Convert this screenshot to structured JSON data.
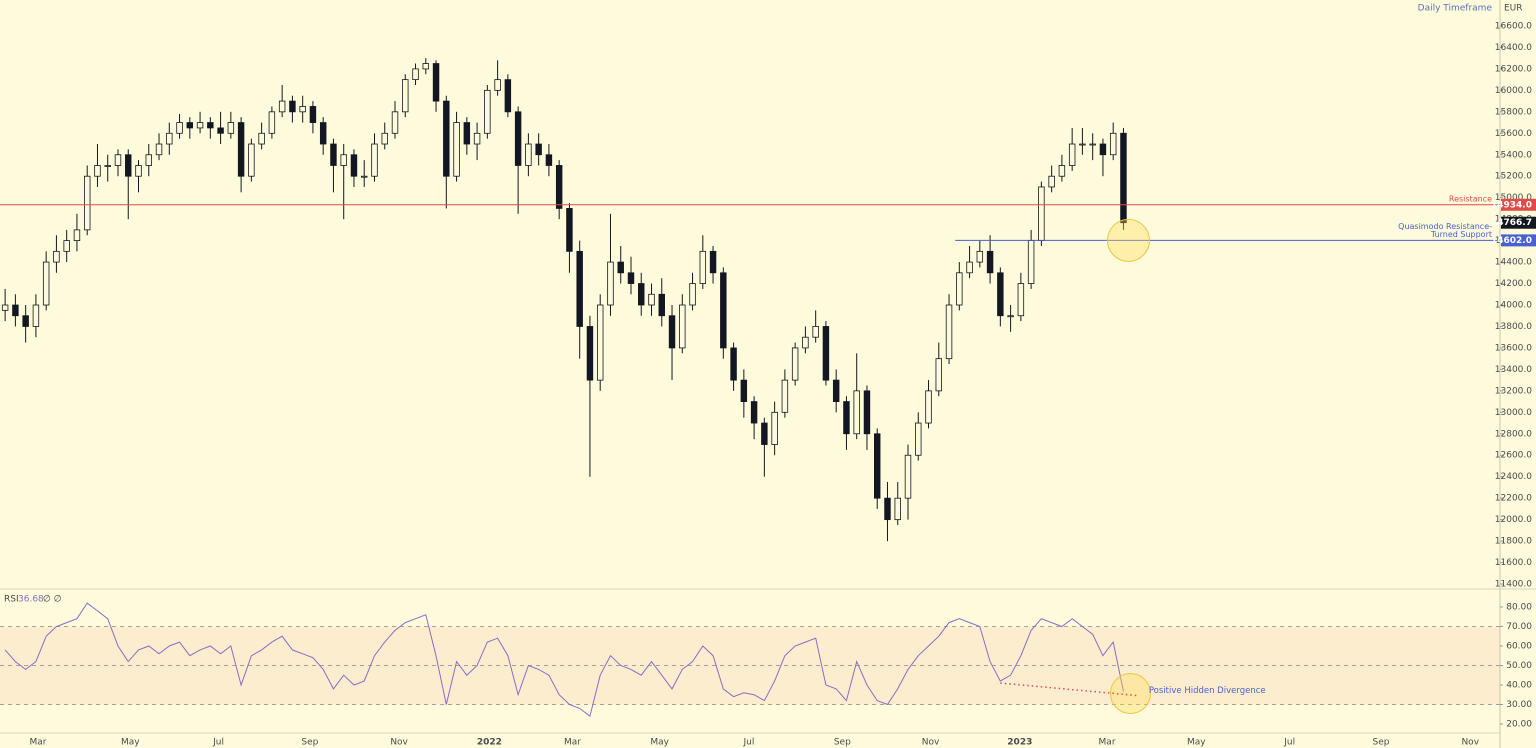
{
  "chart_data": {
    "type": "candlestick",
    "title": "Daily Timeframe",
    "currency": "EUR",
    "color": "#131722",
    "xlim": [
      -0.5,
      145.7
    ],
    "xticks": [
      {
        "value": 3.2,
        "label": "Mar"
      },
      {
        "value": 12.2,
        "label": "May"
      },
      {
        "value": 20.8,
        "label": "Jul"
      },
      {
        "value": 29.7,
        "label": "Sep"
      },
      {
        "value": 38.4,
        "label": "Nov"
      },
      {
        "value": 47.2,
        "label": "2022"
      },
      {
        "value": 55.3,
        "label": "Mar"
      },
      {
        "value": 63.8,
        "label": "May"
      },
      {
        "value": 72.5,
        "label": "Jul"
      },
      {
        "value": 81.6,
        "label": "Sep"
      },
      {
        "value": 90.2,
        "label": "Nov"
      },
      {
        "value": 98.9,
        "label": "2023"
      },
      {
        "value": 107.4,
        "label": "Mar"
      },
      {
        "value": 116.1,
        "label": "May"
      },
      {
        "value": 125.2,
        "label": "Jul"
      },
      {
        "value": 134.1,
        "label": "Sep"
      },
      {
        "value": 142.8,
        "label": "Nov"
      }
    ],
    "ylim": [
      11363,
      16842
    ],
    "yticks": [
      {
        "value": 11400,
        "label": "11400.0"
      },
      {
        "value": 11600,
        "label": "11600.0"
      },
      {
        "value": 11800,
        "label": "11800.0"
      },
      {
        "value": 12000,
        "label": "12000.0"
      },
      {
        "value": 12200,
        "label": "12200.0"
      },
      {
        "value": 12400,
        "label": "12400.0"
      },
      {
        "value": 12600,
        "label": "12600.0"
      },
      {
        "value": 12800,
        "label": "12800.0"
      },
      {
        "value": 13000,
        "label": "13000.0"
      },
      {
        "value": 13200,
        "label": "13200.0"
      },
      {
        "value": 13400,
        "label": "13400.0"
      },
      {
        "value": 13600,
        "label": "13600.0"
      },
      {
        "value": 13800,
        "label": "13800.0"
      },
      {
        "value": 14000,
        "label": "14000.0"
      },
      {
        "value": 14200,
        "label": "14200.0"
      },
      {
        "value": 14400,
        "label": "14400.0"
      },
      {
        "value": 14600,
        "label": "14600.0"
      },
      {
        "value": 14800,
        "label": "14800.0"
      },
      {
        "value": 15000,
        "label": "15000.0"
      },
      {
        "value": 15200,
        "label": "15200.0"
      },
      {
        "value": 15400,
        "label": "15400.0"
      },
      {
        "value": 15600,
        "label": "15600.0"
      },
      {
        "value": 15800,
        "label": "15800.0"
      },
      {
        "value": 16000,
        "label": "16000.0"
      },
      {
        "value": 16200,
        "label": "16200.0"
      },
      {
        "value": 16400,
        "label": "16400.0"
      },
      {
        "value": 16600,
        "label": "16600.0"
      }
    ],
    "ohlc": [
      [
        13950,
        14150,
        13850,
        14000
      ],
      [
        14000,
        14100,
        13800,
        13900
      ],
      [
        13900,
        14000,
        13650,
        13800
      ],
      [
        13800,
        14100,
        13700,
        14000
      ],
      [
        14000,
        14500,
        13950,
        14400
      ],
      [
        14400,
        14650,
        14300,
        14500
      ],
      [
        14500,
        14700,
        14400,
        14600
      ],
      [
        14600,
        14850,
        14500,
        14700
      ],
      [
        14700,
        15300,
        14650,
        15200
      ],
      [
        15200,
        15500,
        15100,
        15300
      ],
      [
        15300,
        15400,
        15150,
        15300
      ],
      [
        15300,
        15450,
        15200,
        15400
      ],
      [
        15400,
        15450,
        14800,
        15200
      ],
      [
        15200,
        15350,
        15050,
        15300
      ],
      [
        15300,
        15500,
        15200,
        15400
      ],
      [
        15400,
        15600,
        15350,
        15500
      ],
      [
        15500,
        15700,
        15400,
        15600
      ],
      [
        15600,
        15780,
        15550,
        15700
      ],
      [
        15700,
        15750,
        15550,
        15650
      ],
      [
        15650,
        15800,
        15600,
        15700
      ],
      [
        15700,
        15750,
        15550,
        15650
      ],
      [
        15650,
        15800,
        15500,
        15600
      ],
      [
        15600,
        15800,
        15550,
        15700
      ],
      [
        15700,
        15750,
        15050,
        15200
      ],
      [
        15200,
        15550,
        15150,
        15500
      ],
      [
        15500,
        15700,
        15450,
        15600
      ],
      [
        15600,
        15850,
        15550,
        15800
      ],
      [
        15800,
        16050,
        15750,
        15900
      ],
      [
        15900,
        15950,
        15700,
        15800
      ],
      [
        15800,
        15950,
        15700,
        15850
      ],
      [
        15850,
        15900,
        15600,
        15700
      ],
      [
        15700,
        15750,
        15400,
        15500
      ],
      [
        15500,
        15550,
        15050,
        15300
      ],
      [
        15300,
        15500,
        14800,
        15400
      ],
      [
        15400,
        15450,
        15100,
        15200
      ],
      [
        15200,
        15350,
        15100,
        15200
      ],
      [
        15200,
        15600,
        15150,
        15500
      ],
      [
        15500,
        15700,
        15450,
        15600
      ],
      [
        15600,
        15900,
        15550,
        15800
      ],
      [
        15800,
        16150,
        15750,
        16100
      ],
      [
        16100,
        16250,
        16050,
        16200
      ],
      [
        16200,
        16300,
        16150,
        16250
      ],
      [
        16250,
        16280,
        15800,
        15900
      ],
      [
        15900,
        15950,
        14900,
        15200
      ],
      [
        15200,
        15800,
        15150,
        15700
      ],
      [
        15700,
        15750,
        15400,
        15500
      ],
      [
        15500,
        15700,
        15350,
        15600
      ],
      [
        15600,
        16050,
        15550,
        16000
      ],
      [
        16000,
        16280,
        15950,
        16100
      ],
      [
        16100,
        16150,
        15750,
        15800
      ],
      [
        15800,
        15850,
        14850,
        15300
      ],
      [
        15300,
        15600,
        15200,
        15500
      ],
      [
        15500,
        15600,
        15300,
        15400
      ],
      [
        15400,
        15500,
        15200,
        15300
      ],
      [
        15300,
        15350,
        14800,
        14900
      ],
      [
        14900,
        14950,
        14300,
        14500
      ],
      [
        14500,
        14600,
        13500,
        13800
      ],
      [
        13800,
        13900,
        12400,
        13300
      ],
      [
        13300,
        14100,
        13200,
        14000
      ],
      [
        14000,
        14850,
        13900,
        14400
      ],
      [
        14400,
        14550,
        14200,
        14300
      ],
      [
        14300,
        14450,
        14100,
        14200
      ],
      [
        14200,
        14300,
        13900,
        14000
      ],
      [
        14000,
        14200,
        13900,
        14100
      ],
      [
        14100,
        14250,
        13800,
        13900
      ],
      [
        13900,
        14000,
        13300,
        13600
      ],
      [
        13600,
        14100,
        13550,
        14000
      ],
      [
        14000,
        14300,
        13950,
        14200
      ],
      [
        14200,
        14650,
        14150,
        14500
      ],
      [
        14500,
        14550,
        14200,
        14300
      ],
      [
        14300,
        14350,
        13500,
        13600
      ],
      [
        13600,
        13650,
        13200,
        13300
      ],
      [
        13300,
        13400,
        12950,
        13100
      ],
      [
        13100,
        13150,
        12750,
        12900
      ],
      [
        12900,
        12950,
        12400,
        12700
      ],
      [
        12700,
        13100,
        12600,
        13000
      ],
      [
        13000,
        13400,
        12950,
        13300
      ],
      [
        13300,
        13650,
        13250,
        13600
      ],
      [
        13600,
        13800,
        13550,
        13700
      ],
      [
        13700,
        13950,
        13650,
        13800
      ],
      [
        13800,
        13850,
        13250,
        13300
      ],
      [
        13300,
        13400,
        13000,
        13100
      ],
      [
        13100,
        13150,
        12650,
        12800
      ],
      [
        12800,
        13550,
        12750,
        13200
      ],
      [
        13200,
        13250,
        12650,
        12800
      ],
      [
        12800,
        12850,
        12100,
        12200
      ],
      [
        12200,
        12350,
        11800,
        12000
      ],
      [
        12000,
        12350,
        11950,
        12200
      ],
      [
        12200,
        12700,
        12000,
        12600
      ],
      [
        12600,
        13000,
        12550,
        12900
      ],
      [
        12900,
        13300,
        12850,
        13200
      ],
      [
        13200,
        13650,
        13150,
        13500
      ],
      [
        13500,
        14100,
        13450,
        14000
      ],
      [
        14000,
        14400,
        13950,
        14300
      ],
      [
        14300,
        14550,
        14250,
        14400
      ],
      [
        14400,
        14600,
        14350,
        14500
      ],
      [
        14500,
        14650,
        14200,
        14300
      ],
      [
        14300,
        14350,
        13800,
        13900
      ],
      [
        13900,
        14000,
        13750,
        13900
      ],
      [
        13900,
        14300,
        13850,
        14200
      ],
      [
        14200,
        14700,
        14150,
        14600
      ],
      [
        14600,
        15150,
        14550,
        15100
      ],
      [
        15100,
        15300,
        15050,
        15200
      ],
      [
        15200,
        15400,
        15150,
        15300
      ],
      [
        15300,
        15650,
        15250,
        15500
      ],
      [
        15500,
        15650,
        15400,
        15500
      ],
      [
        15500,
        15600,
        15350,
        15500
      ],
      [
        15500,
        15550,
        15200,
        15400
      ],
      [
        15400,
        15700,
        15350,
        15600
      ],
      [
        15600,
        15650,
        14700,
        14766.7
      ]
    ],
    "levels": [
      {
        "text": [
          "Resistance"
        ],
        "value": 14934,
        "label": "14934.0",
        "color": "#e04b4a"
      },
      {
        "text": [
          "Quasimodo Resistance-",
          "Turned Support"
        ],
        "value": 14602,
        "label": "14602.0",
        "color": "#4a5fd0",
        "start": 92.6
      }
    ],
    "rsi": {
      "type": "line",
      "name": "RSI",
      "extra": "∅ ∅",
      "color": "#8a6cc7",
      "ylim": [
        15.9,
        88.7
      ],
      "yticks": [
        {
          "value": 20,
          "label": "20.00"
        },
        {
          "value": 30,
          "label": "30.00"
        },
        {
          "value": 40,
          "label": "40.00"
        },
        {
          "value": 50,
          "label": "50.00"
        },
        {
          "value": 60,
          "label": "60.00"
        },
        {
          "value": 70,
          "label": "70.00"
        },
        {
          "value": 80,
          "label": "80.00"
        }
      ],
      "band": [
        30,
        70
      ],
      "midline": 50,
      "values": [
        58,
        52,
        48,
        52,
        65,
        70,
        72,
        74,
        82,
        78,
        74,
        60,
        52,
        58,
        60,
        56,
        60,
        62,
        55,
        58,
        60,
        56,
        60,
        40,
        55,
        58,
        62,
        65,
        58,
        56,
        54,
        48,
        38,
        45,
        40,
        42,
        55,
        62,
        68,
        72,
        74,
        76,
        55,
        30,
        52,
        45,
        50,
        62,
        64,
        55,
        35,
        50,
        48,
        45,
        35,
        30,
        28,
        24,
        45,
        55,
        50,
        48,
        45,
        52,
        45,
        38,
        48,
        52,
        60,
        55,
        38,
        34,
        36,
        35,
        32,
        42,
        55,
        60,
        62,
        64,
        40,
        38,
        32,
        52,
        40,
        32,
        30,
        38,
        48,
        55,
        60,
        65,
        72,
        74,
        72,
        70,
        52,
        42,
        45,
        55,
        68,
        74,
        72,
        70,
        74,
        70,
        66,
        55,
        62,
        36.68
      ],
      "divergence": {
        "label": "Positive Hidden Divergence",
        "x": [
          97,
          110.5
        ],
        "values": [
          41,
          34.5
        ],
        "color": "#e04b4a"
      }
    }
  }
}
